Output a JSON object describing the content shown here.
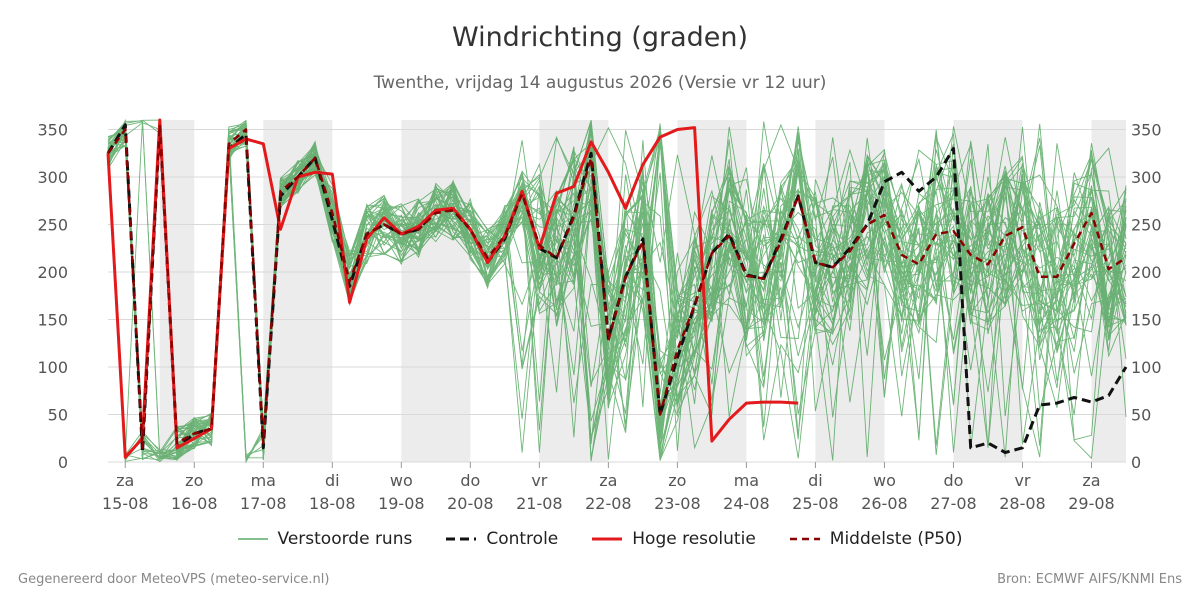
{
  "header": {
    "title": "Windrichting (graden)",
    "subtitle": "Twenthe, vrijdag 14 augustus 2026 (Versie vr 12 uur)"
  },
  "legend": {
    "ensemble": "Verstoorde runs",
    "control": "Controle",
    "hires": "Hoge resolutie",
    "median": "Middelste (P50)"
  },
  "footer": {
    "left": "Gegenereerd door MeteoVPS (meteo-service.nl)",
    "right": "Bron: ECMWF AIFS/KNMI Ens"
  },
  "colors": {
    "ensemble": "#3a9a47",
    "control": "#111111",
    "hires": "#e31a1c",
    "median": "#8b0000",
    "band": "#ececec",
    "grid": "#d9d9d9"
  },
  "chart_data": {
    "type": "line",
    "x_unit": "days since 15-08 00:00",
    "xlim": [
      -0.25,
      14.5
    ],
    "ylim": [
      0,
      360
    ],
    "yticks": [
      0,
      50,
      100,
      150,
      200,
      250,
      300,
      350
    ],
    "xticks": [
      {
        "day": "za",
        "date": "15-08"
      },
      {
        "day": "zo",
        "date": "16-08"
      },
      {
        "day": "ma",
        "date": "17-08"
      },
      {
        "day": "di",
        "date": "18-08"
      },
      {
        "day": "wo",
        "date": "19-08"
      },
      {
        "day": "do",
        "date": "20-08"
      },
      {
        "day": "vr",
        "date": "21-08"
      },
      {
        "day": "za",
        "date": "22-08"
      },
      {
        "day": "zo",
        "date": "23-08"
      },
      {
        "day": "ma",
        "date": "24-08"
      },
      {
        "day": "di",
        "date": "25-08"
      },
      {
        "day": "wo",
        "date": "26-08"
      },
      {
        "day": "do",
        "date": "27-08"
      },
      {
        "day": "vr",
        "date": "28-08"
      },
      {
        "day": "za",
        "date": "29-08"
      }
    ],
    "grid": true,
    "legend_position": "bottom",
    "shaded_bands": [
      [
        0.5,
        1
      ],
      [
        2,
        3
      ],
      [
        4,
        5
      ],
      [
        6,
        7
      ],
      [
        8,
        9
      ],
      [
        10,
        11
      ],
      [
        12,
        13
      ],
      [
        14,
        14.5
      ]
    ],
    "series": [
      {
        "name": "Controle",
        "style": "dashed",
        "x": [
          -0.25,
          0,
          0.25,
          0.5,
          0.75,
          1,
          1.25,
          1.5,
          1.75,
          2,
          2.25,
          2.5,
          2.75,
          3,
          3.25,
          3.5,
          3.75,
          4,
          4.25,
          4.5,
          4.75,
          5,
          5.25,
          5.5,
          5.75,
          6,
          6.25,
          6.5,
          6.75,
          7,
          7.25,
          7.5,
          7.75,
          8,
          8.25,
          8.5,
          8.75,
          9,
          9.25,
          9.5,
          9.75,
          10,
          10.25,
          10.5,
          10.75,
          11,
          11.25,
          11.5,
          11.75,
          12,
          12.25,
          12.5,
          12.75,
          13,
          13.25,
          13.5,
          13.75,
          14,
          14.25,
          14.5
        ],
        "y": [
          325,
          355,
          10,
          355,
          15,
          30,
          35,
          330,
          345,
          15,
          280,
          300,
          320,
          255,
          185,
          240,
          250,
          240,
          245,
          265,
          265,
          245,
          210,
          235,
          285,
          225,
          215,
          260,
          325,
          130,
          195,
          235,
          50,
          110,
          165,
          220,
          240,
          197,
          193,
          235,
          280,
          210,
          205,
          225,
          250,
          295,
          305,
          285,
          300,
          330,
          15,
          20,
          10,
          15,
          60,
          62,
          68,
          63,
          70,
          100
        ]
      },
      {
        "name": "Hoge resolutie",
        "style": "solid",
        "x": [
          -0.25,
          0,
          0.25,
          0.5,
          0.75,
          1,
          1.25,
          1.5,
          1.75,
          2,
          2.25,
          2.5,
          2.75,
          3,
          3.25,
          3.5,
          3.75,
          4,
          4.25,
          4.5,
          4.75,
          5,
          5.25,
          5.5,
          5.75,
          6,
          6.25,
          6.5,
          6.75,
          7,
          7.25,
          7.5,
          7.75,
          8,
          8.25,
          8.5,
          8.75,
          9,
          9.25,
          9.5,
          9.75
        ],
        "y": [
          325,
          5,
          25,
          360,
          15,
          25,
          35,
          330,
          340,
          335,
          245,
          300,
          305,
          303,
          168,
          235,
          257,
          240,
          248,
          265,
          267,
          245,
          210,
          238,
          285,
          225,
          283,
          290,
          337,
          305,
          267,
          313,
          342,
          350,
          352,
          22,
          45,
          62,
          63,
          63,
          62
        ]
      },
      {
        "name": "Middelste (P50)",
        "style": "dashed",
        "x": [
          -0.25,
          0,
          0.25,
          0.5,
          0.75,
          1,
          1.25,
          1.5,
          1.75,
          2,
          2.25,
          2.5,
          2.75,
          3,
          3.25,
          3.5,
          3.75,
          4,
          4.25,
          4.5,
          4.75,
          5,
          5.25,
          5.5,
          5.75,
          6,
          6.25,
          6.5,
          6.75,
          7,
          7.25,
          7.5,
          7.75,
          8,
          8.25,
          8.5,
          8.75,
          9,
          9.25,
          9.5,
          9.75,
          10,
          10.25,
          10.5,
          10.75,
          11,
          11.25,
          11.5,
          11.75,
          12,
          12.25,
          12.5,
          12.75,
          13,
          13.25,
          13.5,
          13.75,
          14,
          14.25,
          14.5
        ],
        "y": [
          325,
          350,
          15,
          355,
          20,
          30,
          35,
          335,
          350,
          20,
          285,
          300,
          320,
          262,
          190,
          240,
          250,
          240,
          245,
          262,
          265,
          245,
          215,
          238,
          282,
          228,
          215,
          258,
          320,
          128,
          195,
          232,
          50,
          118,
          165,
          220,
          238,
          196,
          193,
          232,
          280,
          210,
          205,
          222,
          250,
          260,
          218,
          208,
          240,
          243,
          218,
          208,
          238,
          247,
          195,
          195,
          230,
          262,
          203,
          215
        ]
      }
    ]
  }
}
